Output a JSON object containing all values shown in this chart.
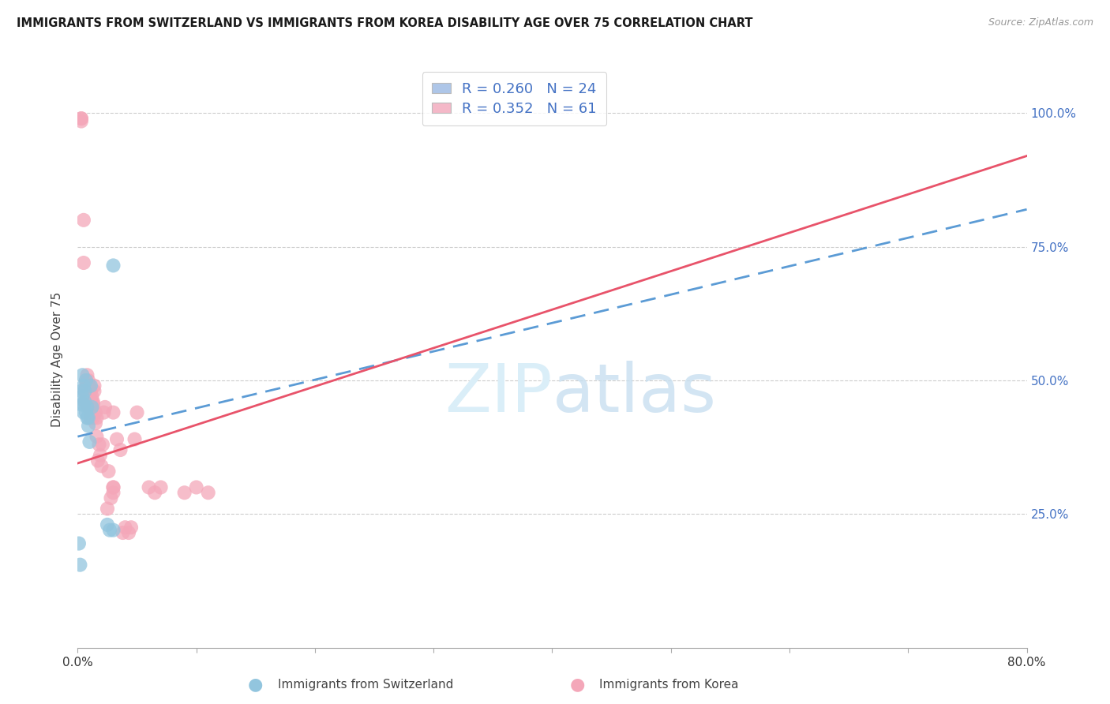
{
  "title": "IMMIGRANTS FROM SWITZERLAND VS IMMIGRANTS FROM KOREA DISABILITY AGE OVER 75 CORRELATION CHART",
  "source": "Source: ZipAtlas.com",
  "ylabel": "Disability Age Over 75",
  "blue_color": "#92c5de",
  "pink_color": "#f4a7b9",
  "blue_line_color": "#5b9bd5",
  "pink_line_color": "#e8536a",
  "legend_blue_fill": "#aec6e8",
  "legend_pink_fill": "#f4b8c8",
  "watermark_color": "#daeef8",
  "swiss_x": [
    0.001,
    0.002,
    0.003,
    0.003,
    0.004,
    0.004,
    0.005,
    0.005,
    0.005,
    0.006,
    0.006,
    0.007,
    0.007,
    0.008,
    0.008,
    0.009,
    0.009,
    0.01,
    0.011,
    0.012,
    0.025,
    0.027,
    0.03,
    0.03
  ],
  "swiss_y": [
    0.195,
    0.155,
    0.48,
    0.455,
    0.47,
    0.51,
    0.455,
    0.44,
    0.49,
    0.46,
    0.48,
    0.44,
    0.5,
    0.45,
    0.43,
    0.415,
    0.43,
    0.385,
    0.49,
    0.45,
    0.23,
    0.22,
    0.715,
    0.22
  ],
  "korea_x": [
    0.003,
    0.003,
    0.003,
    0.005,
    0.005,
    0.006,
    0.006,
    0.007,
    0.007,
    0.007,
    0.008,
    0.008,
    0.008,
    0.009,
    0.009,
    0.009,
    0.01,
    0.01,
    0.01,
    0.011,
    0.011,
    0.012,
    0.012,
    0.012,
    0.013,
    0.013,
    0.013,
    0.014,
    0.014,
    0.015,
    0.015,
    0.016,
    0.016,
    0.017,
    0.018,
    0.019,
    0.02,
    0.021,
    0.022,
    0.023,
    0.025,
    0.026,
    0.028,
    0.03,
    0.033,
    0.036,
    0.038,
    0.04,
    0.043,
    0.045,
    0.048,
    0.05,
    0.06,
    0.065,
    0.07,
    0.09,
    0.1,
    0.11,
    0.03,
    0.03,
    0.03
  ],
  "korea_y": [
    0.99,
    0.99,
    0.985,
    0.8,
    0.72,
    0.48,
    0.46,
    0.5,
    0.49,
    0.475,
    0.51,
    0.47,
    0.49,
    0.5,
    0.48,
    0.45,
    0.49,
    0.47,
    0.46,
    0.48,
    0.43,
    0.45,
    0.47,
    0.46,
    0.43,
    0.46,
    0.455,
    0.48,
    0.49,
    0.44,
    0.42,
    0.43,
    0.395,
    0.35,
    0.38,
    0.36,
    0.34,
    0.38,
    0.44,
    0.45,
    0.26,
    0.33,
    0.28,
    0.44,
    0.39,
    0.37,
    0.215,
    0.225,
    0.215,
    0.225,
    0.39,
    0.44,
    0.3,
    0.29,
    0.3,
    0.29,
    0.3,
    0.29,
    0.3,
    0.29,
    0.3
  ],
  "x_ticks": [
    0.0,
    0.1,
    0.2,
    0.3,
    0.4,
    0.5,
    0.6,
    0.7,
    0.8
  ],
  "x_tick_labels": [
    "0.0%",
    "",
    "",
    "",
    "",
    "",
    "",
    "",
    "80.0%"
  ],
  "y_ticks": [
    0.0,
    0.25,
    0.5,
    0.75,
    1.0
  ],
  "y_tick_labels_right": [
    "",
    "25.0%",
    "50.0%",
    "75.0%",
    "100.0%"
  ],
  "trend_swiss_x0": 0.0,
  "trend_swiss_x1": 0.8,
  "trend_swiss_y0": 0.395,
  "trend_swiss_y1": 0.82,
  "trend_korea_x0": 0.0,
  "trend_korea_x1": 0.8,
  "trend_korea_y0": 0.345,
  "trend_korea_y1": 0.92
}
